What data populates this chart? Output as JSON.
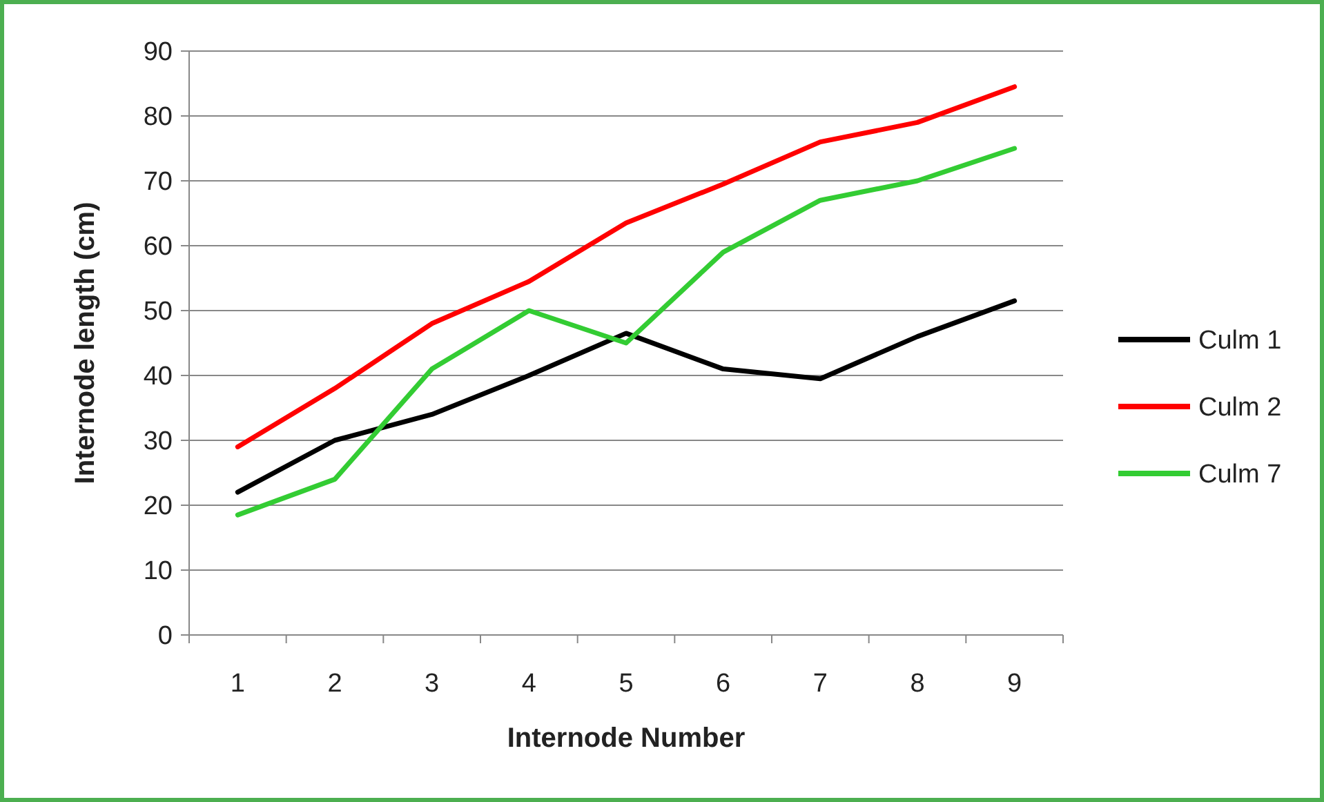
{
  "chart_data": {
    "type": "line",
    "xlabel": "Internode Number",
    "ylabel": "Internode length (cm)",
    "categories": [
      "1",
      "2",
      "3",
      "4",
      "5",
      "6",
      "7",
      "8",
      "9"
    ],
    "series": [
      {
        "name": "Culm 1",
        "color": "#000000",
        "values": [
          22,
          30,
          34,
          40,
          46.5,
          41,
          39.5,
          46,
          51.5
        ]
      },
      {
        "name": "Culm 2",
        "color": "#ff0000",
        "values": [
          29,
          38,
          48,
          54.5,
          63.5,
          69.5,
          76,
          79,
          84.5
        ]
      },
      {
        "name": "Culm 7",
        "color": "#33cc33",
        "values": [
          18.5,
          24,
          41,
          50,
          45,
          59,
          67,
          70,
          75
        ]
      }
    ],
    "ylim": [
      0,
      90
    ],
    "yticks": [
      0,
      10,
      20,
      30,
      40,
      50,
      60,
      70,
      80,
      90
    ],
    "grid": "y",
    "legend": "right",
    "marker": "none",
    "line_style": "solid"
  }
}
